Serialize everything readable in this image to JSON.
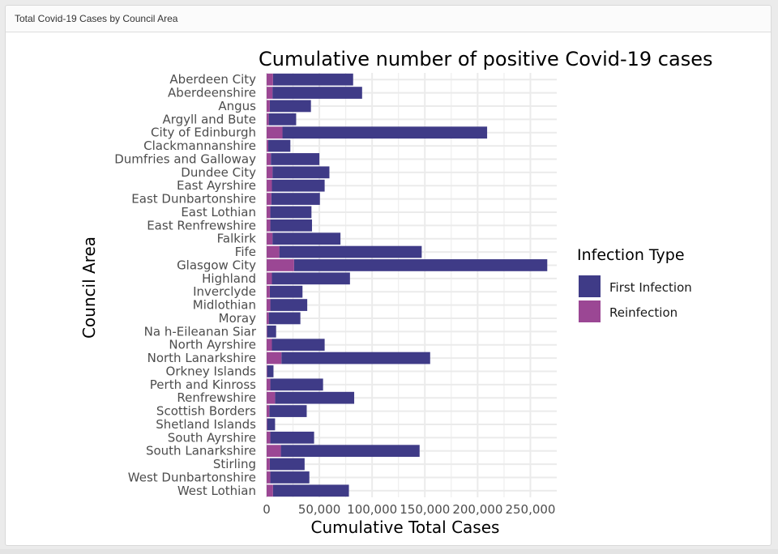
{
  "panel": {
    "title": "Total Covid-19 Cases by Council Area"
  },
  "colors": {
    "first_infection": "#3f3b87",
    "reinfection": "#9b4794",
    "grid": "#ebebeb",
    "text": "#1a1a1a",
    "tick_text": "#4d4d4d"
  },
  "chart_data": {
    "type": "bar",
    "orientation": "horizontal",
    "stacked": true,
    "title": "Cumulative number of positive Covid-19 cases",
    "xlabel": "Cumulative Total Cases",
    "ylabel": "Council Area",
    "xlim": [
      0,
      275000
    ],
    "x_ticks": [
      0,
      50000,
      100000,
      150000,
      200000,
      250000
    ],
    "x_tick_labels": [
      "0",
      "50,000",
      "100,000",
      "150,000",
      "200,000",
      "250,000"
    ],
    "grid": true,
    "legend": {
      "title": "Infection Type",
      "placement": "right"
    },
    "categories": [
      "Aberdeen City",
      "Aberdeenshire",
      "Angus",
      "Argyll and Bute",
      "City of Edinburgh",
      "Clackmannanshire",
      "Dumfries and Galloway",
      "Dundee City",
      "East Ayrshire",
      "East Dunbartonshire",
      "East Lothian",
      "East Renfrewshire",
      "Falkirk",
      "Fife",
      "Glasgow City",
      "Highland",
      "Inverclyde",
      "Midlothian",
      "Moray",
      "Na h-Eileanan Siar",
      "North Ayrshire",
      "North Lanarkshire",
      "Orkney Islands",
      "Perth and Kinross",
      "Renfrewshire",
      "Scottish Borders",
      "Shetland Islands",
      "South Ayrshire",
      "South Lanarkshire",
      "Stirling",
      "West Dunbartonshire",
      "West Lothian"
    ],
    "series": [
      {
        "name": "Reinfection",
        "values": [
          6000,
          5500,
          3000,
          2000,
          15000,
          1500,
          4000,
          5500,
          5000,
          4500,
          3500,
          3500,
          5500,
          12000,
          26000,
          5000,
          3000,
          3500,
          2000,
          500,
          5000,
          14000,
          500,
          3500,
          8000,
          2500,
          500,
          3500,
          13500,
          3000,
          3500,
          6000
        ]
      },
      {
        "name": "First Infection",
        "values": [
          76000,
          85000,
          39000,
          26000,
          194000,
          21000,
          46000,
          54000,
          50000,
          46000,
          39000,
          39500,
          64500,
          135000,
          240000,
          74000,
          31000,
          35000,
          30000,
          8500,
          50000,
          141000,
          6000,
          50000,
          75000,
          35500,
          7500,
          41500,
          131500,
          33000,
          37000,
          72000
        ]
      }
    ]
  }
}
